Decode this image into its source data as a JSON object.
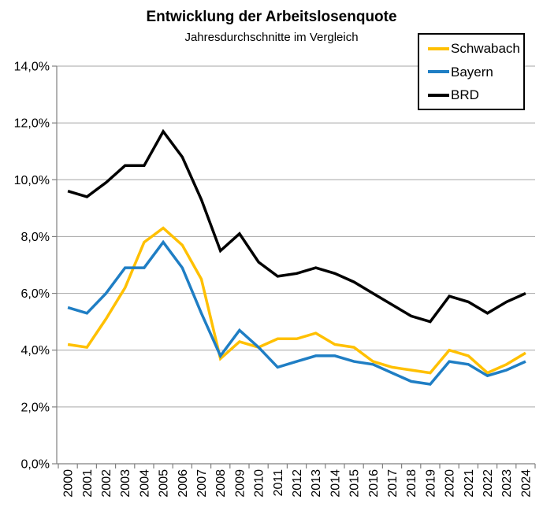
{
  "chart_data": {
    "type": "line",
    "title": "Entwicklung der Arbeitslosenquote",
    "subtitle": "Jahresdurchschnitte im Vergleich",
    "categories": [
      "2000",
      "2001",
      "2002",
      "2003",
      "2004",
      "2005",
      "2006",
      "2007",
      "2008",
      "2009",
      "2010",
      "2011",
      "2012",
      "2013",
      "2014",
      "2015",
      "2016",
      "2017",
      "2018",
      "2019",
      "2020",
      "2021",
      "2022",
      "2023",
      "2024"
    ],
    "series": [
      {
        "name": "Schwabach",
        "color": "#FFC000",
        "values": [
          4.2,
          4.1,
          5.1,
          6.2,
          7.8,
          8.3,
          7.7,
          6.5,
          3.7,
          4.3,
          4.1,
          4.4,
          4.4,
          4.6,
          4.2,
          4.1,
          3.6,
          3.4,
          3.3,
          3.2,
          4.0,
          3.8,
          3.2,
          3.5,
          3.9
        ]
      },
      {
        "name": "Bayern",
        "color": "#1F7EC4",
        "values": [
          5.5,
          5.3,
          6.0,
          6.9,
          6.9,
          7.8,
          6.9,
          5.3,
          3.8,
          4.7,
          4.1,
          3.4,
          3.6,
          3.8,
          3.8,
          3.6,
          3.5,
          3.2,
          2.9,
          2.8,
          3.6,
          3.5,
          3.1,
          3.3,
          3.6
        ]
      },
      {
        "name": "BRD",
        "color": "#000000",
        "values": [
          9.6,
          9.4,
          9.9,
          10.5,
          10.5,
          11.7,
          10.8,
          9.3,
          7.5,
          8.1,
          7.1,
          6.6,
          6.7,
          6.9,
          6.7,
          6.4,
          6.0,
          5.6,
          5.2,
          5.0,
          5.9,
          5.7,
          5.3,
          5.7,
          6.0
        ]
      }
    ],
    "ylim": [
      0,
      14
    ],
    "ytick_step": 2,
    "ytick_labels": [
      "0,0%",
      "2,0%",
      "4,0%",
      "6,0%",
      "8,0%",
      "10,0%",
      "12,0%",
      "14,0%"
    ],
    "grid": true,
    "legend_position": "top-right",
    "colors": {
      "gridline": "#A6A6A6",
      "axis": "#808080",
      "background": "#FFFFFF",
      "text": "#000000"
    }
  }
}
